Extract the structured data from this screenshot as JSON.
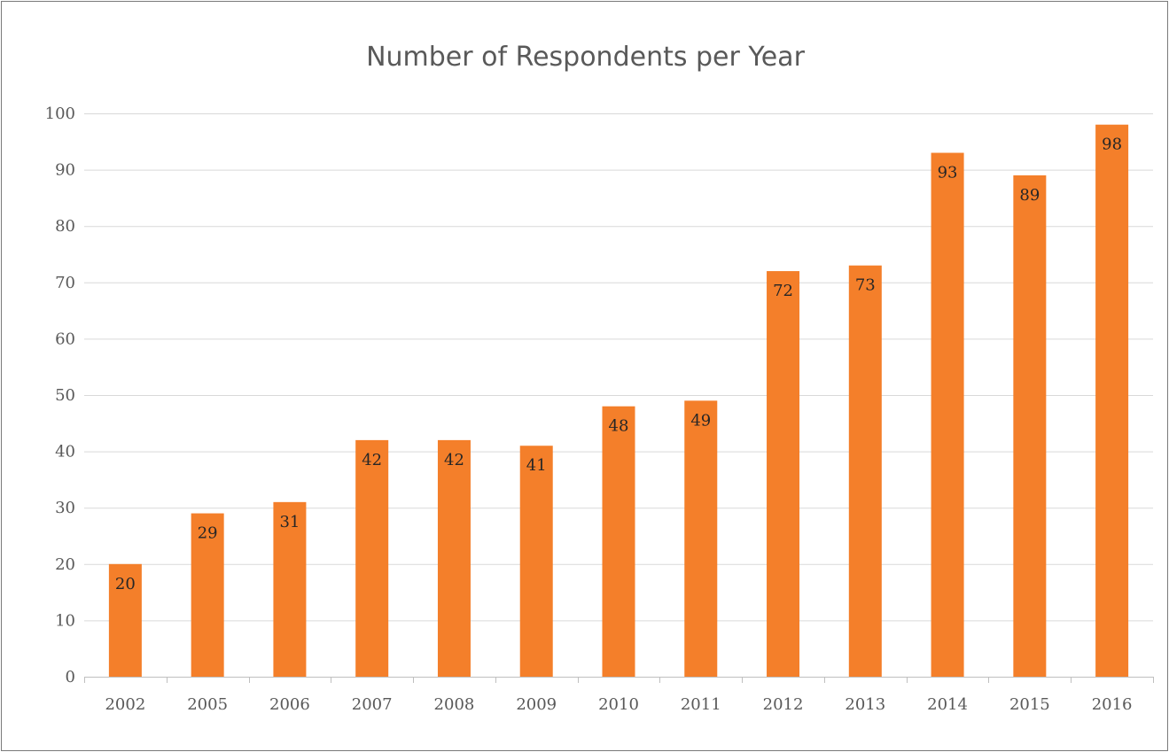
{
  "chart_data": {
    "type": "bar",
    "title": "Number of Respondents per Year",
    "xlabel": "",
    "ylabel": "",
    "categories": [
      "2002",
      "2005",
      "2006",
      "2007",
      "2008",
      "2009",
      "2010",
      "2011",
      "2012",
      "2013",
      "2014",
      "2015",
      "2016"
    ],
    "values": [
      20,
      29,
      31,
      42,
      42,
      41,
      48,
      49,
      72,
      73,
      93,
      89,
      98
    ],
    "ylim": [
      0,
      100
    ],
    "yticks": [
      0,
      10,
      20,
      30,
      40,
      50,
      60,
      70,
      80,
      90,
      100
    ],
    "grid": true,
    "legend": "none",
    "data_labels": "inside-end",
    "bar_color": "#f47f2a",
    "grid_color": "#d9d9d9",
    "axis_color": "#bfbfbf"
  }
}
